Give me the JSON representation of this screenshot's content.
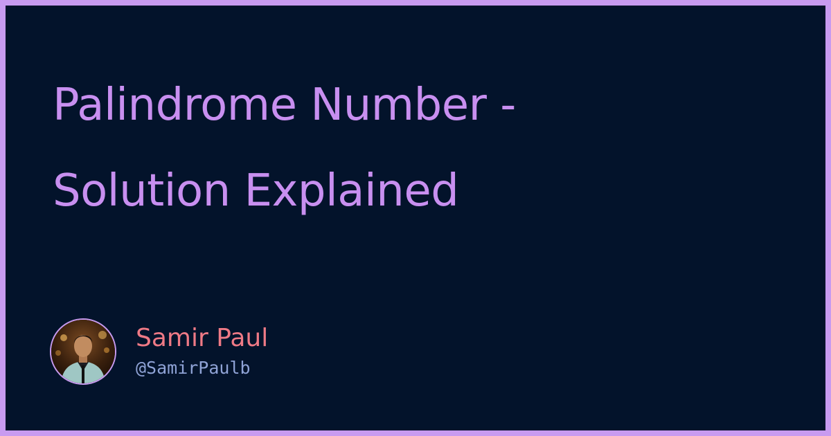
{
  "post": {
    "title_line1": "Palindrome Number -",
    "title_line2": "Solution Explained"
  },
  "author": {
    "name": "Samir Paul",
    "handle": "@SamirPaulb",
    "avatar_icon": "profile-photo"
  },
  "colors": {
    "border": "#c89bf0",
    "background": "#03132b",
    "title": "#c88ff0",
    "name": "#ef7a86",
    "handle": "#8fa3d6"
  }
}
